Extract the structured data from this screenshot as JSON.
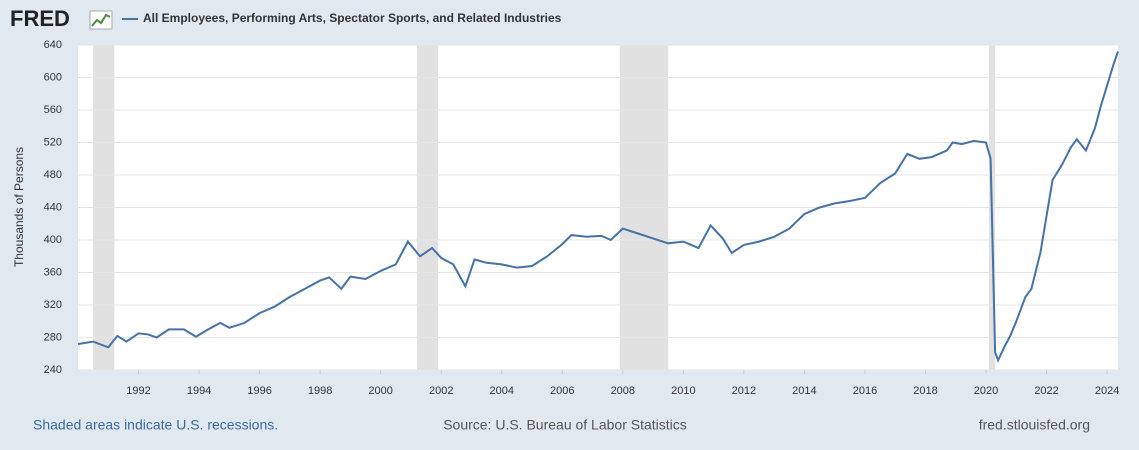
{
  "logo": "FRED",
  "chart_data": {
    "type": "line",
    "series": [
      {
        "name": "All Employees, Performing Arts, Spectator Sports, and Related Industries",
        "color": "#4572a7",
        "x": [
          1990.0,
          1990.5,
          1991.0,
          1991.3,
          1991.6,
          1992.0,
          1992.3,
          1992.6,
          1993.0,
          1993.5,
          1993.9,
          1994.3,
          1994.7,
          1995.0,
          1995.5,
          1996.0,
          1996.5,
          1997.0,
          1997.5,
          1998.0,
          1998.3,
          1998.7,
          1999.0,
          1999.5,
          2000.0,
          2000.5,
          2000.9,
          2001.3,
          2001.7,
          2002.0,
          2002.4,
          2002.8,
          2003.1,
          2003.5,
          2004.0,
          2004.5,
          2005.0,
          2005.5,
          2006.0,
          2006.3,
          2006.8,
          2007.3,
          2007.6,
          2008.0,
          2008.5,
          2009.0,
          2009.5,
          2010.0,
          2010.5,
          2010.9,
          2011.3,
          2011.6,
          2012.0,
          2012.5,
          2013.0,
          2013.5,
          2014.0,
          2014.5,
          2015.0,
          2015.5,
          2016.0,
          2016.5,
          2017.0,
          2017.4,
          2017.8,
          2018.2,
          2018.7,
          2018.9,
          2019.2,
          2019.6,
          2020.0,
          2020.15,
          2020.3,
          2020.4,
          2020.6,
          2020.8,
          2021.0,
          2021.3,
          2021.5,
          2021.8,
          2022.0,
          2022.2,
          2022.5,
          2022.8,
          2023.0,
          2023.3,
          2023.6,
          2023.8,
          2024.0,
          2024.2,
          2024.36
        ],
        "values": [
          272,
          275,
          268,
          282,
          275,
          285,
          284,
          280,
          290,
          290,
          281,
          290,
          298,
          292,
          298,
          310,
          318,
          330,
          340,
          350,
          354,
          340,
          355,
          352,
          362,
          370,
          398,
          380,
          390,
          378,
          370,
          343,
          376,
          372,
          370,
          366,
          368,
          380,
          395,
          406,
          404,
          405,
          400,
          414,
          408,
          402,
          396,
          398,
          390,
          418,
          402,
          384,
          394,
          398,
          404,
          414,
          432,
          440,
          445,
          448,
          452,
          470,
          482,
          506,
          500,
          502,
          510,
          520,
          518,
          522,
          520,
          500,
          262,
          252,
          268,
          282,
          300,
          330,
          340,
          385,
          430,
          474,
          492,
          514,
          524,
          510,
          538,
          566,
          590,
          615,
          632
        ]
      }
    ],
    "xlim": [
      1990.0,
      2024.36
    ],
    "xticks": [
      1992,
      1994,
      1996,
      1998,
      2000,
      2002,
      2004,
      2006,
      2008,
      2010,
      2012,
      2014,
      2016,
      2018,
      2020,
      2022,
      2024
    ],
    "ylim": [
      240,
      640
    ],
    "yticks": [
      240,
      280,
      320,
      360,
      400,
      440,
      480,
      520,
      560,
      600,
      640
    ],
    "ylabel": "Thousands of Persons",
    "grid": true,
    "recessions": [
      [
        1990.5,
        1991.2
      ],
      [
        2001.2,
        2001.9
      ],
      [
        2007.9,
        2009.5
      ],
      [
        2020.1,
        2020.3
      ]
    ],
    "recession_color": "#e1e1e1",
    "recession_note": "Shaded areas indicate U.S. recessions.",
    "source": "Source: U.S. Bureau of Labor Statistics",
    "site": "fred.stlouisfed.org"
  }
}
